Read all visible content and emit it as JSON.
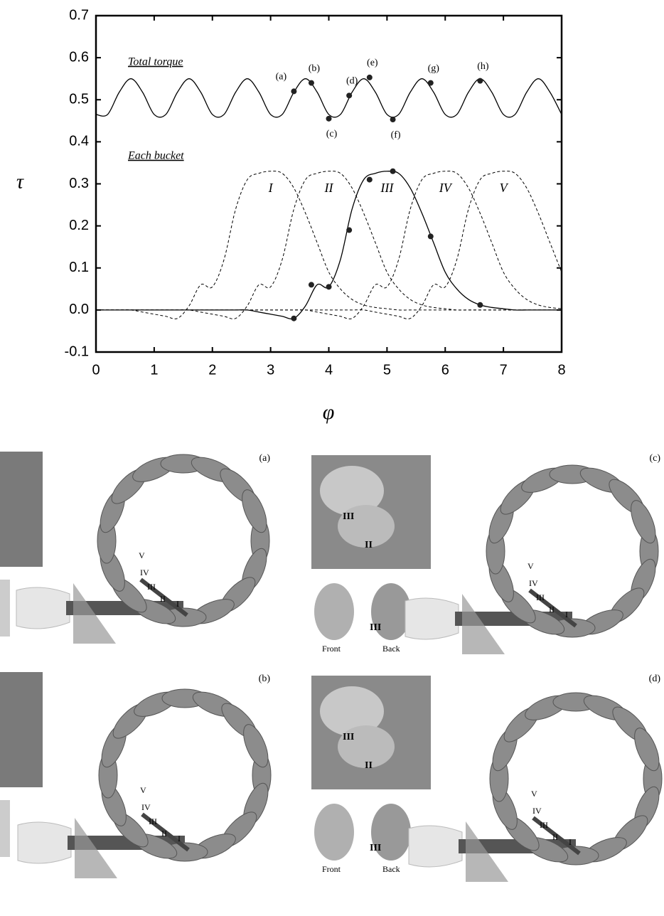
{
  "chart_data": {
    "type": "line",
    "xlabel": "φ",
    "ylabel": "τ",
    "xlim": [
      0,
      8
    ],
    "ylim": [
      -0.1,
      0.7
    ],
    "xticks": [
      0,
      1,
      2,
      3,
      4,
      5,
      6,
      7,
      8
    ],
    "yticks": [
      -0.1,
      {
        "value": 0,
        "label": "0.0"
      },
      0.1,
      0.2,
      0.3,
      0.4,
      0.5,
      0.6,
      0.7
    ],
    "annotations": [
      "Total torque",
      "Each bucket"
    ],
    "x": [
      0,
      0.2,
      0.4,
      0.6,
      0.8,
      1,
      1.2,
      1.4,
      1.6,
      1.8,
      2,
      2.2,
      2.4,
      2.6,
      2.8,
      3,
      3.2,
      3.4,
      3.6,
      3.8,
      4,
      4.2,
      4.4,
      4.6,
      4.8,
      5,
      5.2,
      5.4,
      5.6,
      5.8,
      6,
      6.2,
      6.4,
      6.6,
      6.8,
      7,
      7.2,
      7.4,
      7.6,
      7.8,
      8
    ],
    "series": [
      {
        "name": "Total torque",
        "color": "#000000",
        "dash": false,
        "label_shown": false,
        "values": [
          0.465,
          0.465,
          0.518,
          0.55,
          0.518,
          0.465,
          0.465,
          0.518,
          0.55,
          0.518,
          0.465,
          0.465,
          0.518,
          0.55,
          0.518,
          0.465,
          0.465,
          0.518,
          0.55,
          0.518,
          0.465,
          0.465,
          0.518,
          0.55,
          0.518,
          0.465,
          0.465,
          0.518,
          0.55,
          0.518,
          0.465,
          0.465,
          0.518,
          0.55,
          0.518,
          0.465,
          0.465,
          0.518,
          0.55,
          0.518,
          0.465
        ]
      },
      {
        "name": "I",
        "color": "#000000",
        "dash": true,
        "label_shown": true,
        "values": [
          0,
          0,
          0,
          0,
          -0.005,
          -0.01,
          -0.015,
          -0.02,
          0.01,
          0.06,
          0.055,
          0.12,
          0.24,
          0.31,
          0.325,
          0.33,
          0.325,
          0.29,
          0.23,
          0.16,
          0.09,
          0.05,
          0.025,
          0.012,
          0.006,
          0.003,
          0,
          0,
          0,
          0,
          0,
          0,
          0,
          0,
          0,
          0,
          0,
          0,
          0,
          0,
          0
        ]
      },
      {
        "name": "II",
        "color": "#000000",
        "dash": true,
        "label_shown": true,
        "values": [
          0,
          0,
          0,
          0,
          0,
          0,
          0,
          0,
          0,
          -0.005,
          -0.01,
          -0.015,
          -0.02,
          0.01,
          0.06,
          0.055,
          0.12,
          0.24,
          0.31,
          0.325,
          0.33,
          0.325,
          0.29,
          0.23,
          0.16,
          0.09,
          0.05,
          0.025,
          0.012,
          0.006,
          0.003,
          0,
          0,
          0,
          0,
          0,
          0,
          0,
          0,
          0,
          0
        ]
      },
      {
        "name": "III",
        "color": "#000000",
        "dash": false,
        "label_shown": true,
        "values": [
          0,
          0,
          0,
          0,
          0,
          0,
          0,
          0,
          0,
          0,
          0,
          0,
          0,
          0,
          -0.005,
          -0.01,
          -0.015,
          -0.02,
          0.01,
          0.06,
          0.055,
          0.12,
          0.24,
          0.31,
          0.325,
          0.33,
          0.325,
          0.29,
          0.23,
          0.16,
          0.09,
          0.05,
          0.025,
          0.012,
          0.006,
          0.003,
          0,
          0,
          0,
          0,
          0
        ]
      },
      {
        "name": "IV",
        "color": "#000000",
        "dash": true,
        "label_shown": true,
        "values": [
          0,
          0,
          0,
          0,
          0,
          0,
          0,
          0,
          0,
          0,
          0,
          0,
          0,
          0,
          0,
          0,
          0,
          0,
          0,
          -0.005,
          -0.01,
          -0.015,
          -0.02,
          0.01,
          0.06,
          0.055,
          0.12,
          0.24,
          0.31,
          0.325,
          0.33,
          0.325,
          0.29,
          0.23,
          0.16,
          0.09,
          0.05,
          0.025,
          0.012,
          0.006,
          0.003
        ]
      },
      {
        "name": "V",
        "color": "#000000",
        "dash": true,
        "label_shown": true,
        "values": [
          0,
          0,
          0,
          0,
          0,
          0,
          0,
          0,
          0,
          0,
          0,
          0,
          0,
          0,
          0,
          0,
          0,
          0,
          0,
          0,
          0,
          0,
          0,
          0,
          -0.005,
          -0.01,
          -0.015,
          -0.02,
          0.01,
          0.06,
          0.055,
          0.12,
          0.24,
          0.31,
          0.325,
          0.33,
          0.325,
          0.29,
          0.23,
          0.16,
          0.09
        ]
      }
    ],
    "markers": {
      "x": [
        3.4,
        3.7,
        4.0,
        4.35,
        4.7,
        5.1,
        5.75,
        6.6
      ],
      "labels": [
        "(a)",
        "(b)",
        "(c)",
        "(d)",
        "(e)",
        "(f)",
        "(g)",
        "(h)"
      ],
      "total_torque": [
        0.52,
        0.54,
        0.455,
        0.51,
        0.553,
        0.453,
        0.54,
        0.545
      ],
      "bucket_III": [
        -0.02,
        0.06,
        0.055,
        0.19,
        0.31,
        0.33,
        0.175,
        0.012
      ]
    }
  },
  "panels": [
    {
      "tag": "(a)",
      "labels": [
        "V",
        "IV",
        "III",
        "II",
        "I"
      ]
    },
    {
      "tag": "(c)",
      "labels": [
        "V",
        "IV",
        "III",
        "II",
        "I"
      ],
      "inset": [
        "III",
        "II"
      ],
      "views": [
        "Front",
        "III",
        "Back"
      ]
    },
    {
      "tag": "(b)",
      "labels": [
        "V",
        "IV",
        "III",
        "II",
        "I"
      ]
    },
    {
      "tag": "(d)",
      "labels": [
        "V",
        "IV",
        "III",
        "II",
        "I"
      ],
      "inset": [
        "III",
        "II"
      ],
      "views": [
        "Front",
        "III",
        "Back"
      ]
    }
  ]
}
